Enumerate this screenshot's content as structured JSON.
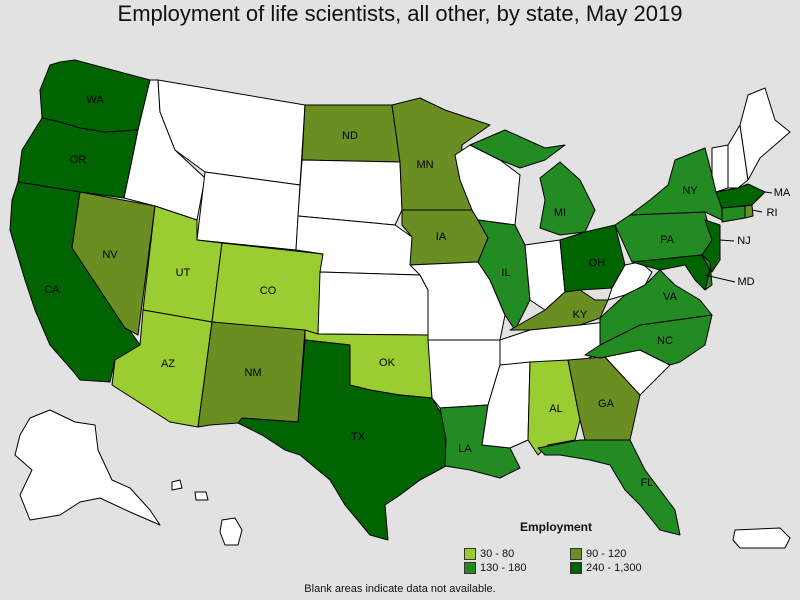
{
  "title": "Employment of life scientists, all other, by state, May 2019",
  "legend": {
    "title": "Employment",
    "items": [
      {
        "label": "30 - 80",
        "color": "#9acd32"
      },
      {
        "label": "90 - 120",
        "color": "#6b8e23"
      },
      {
        "label": "130 - 180",
        "color": "#228b22"
      },
      {
        "label": "240 - 1,300",
        "color": "#006400"
      }
    ]
  },
  "colors": {
    "nodata": "#ffffff",
    "background": "#e2e2e2"
  },
  "footnote": "Blank areas indicate data not available.",
  "states": {
    "WA": {
      "label": "WA",
      "bin": 3
    },
    "OR": {
      "label": "OR",
      "bin": 3
    },
    "CA": {
      "label": "CA",
      "bin": 3
    },
    "NV": {
      "label": "NV",
      "bin": 1
    },
    "UT": {
      "label": "UT",
      "bin": 0
    },
    "CO": {
      "label": "CO",
      "bin": 0
    },
    "AZ": {
      "label": "AZ",
      "bin": 0
    },
    "NM": {
      "label": "NM",
      "bin": 1
    },
    "TX": {
      "label": "TX",
      "bin": 3
    },
    "OK": {
      "label": "OK",
      "bin": 0
    },
    "ND": {
      "label": "ND",
      "bin": 1
    },
    "MN": {
      "label": "MN",
      "bin": 1
    },
    "IA": {
      "label": "IA",
      "bin": 1
    },
    "IL": {
      "label": "IL",
      "bin": 2
    },
    "MI": {
      "label": "MI",
      "bin": 2
    },
    "OH": {
      "label": "OH",
      "bin": 3
    },
    "KY": {
      "label": "KY",
      "bin": 1
    },
    "LA": {
      "label": "LA",
      "bin": 2
    },
    "AL": {
      "label": "AL",
      "bin": 0
    },
    "GA": {
      "label": "GA",
      "bin": 1
    },
    "FL": {
      "label": "FL",
      "bin": 2
    },
    "NC": {
      "label": "NC",
      "bin": 2
    },
    "VA": {
      "label": "VA",
      "bin": 2
    },
    "PA": {
      "label": "PA",
      "bin": 2
    },
    "NY": {
      "label": "NY",
      "bin": 2
    },
    "NJ": {
      "label": "NJ",
      "bin": 3
    },
    "MD": {
      "label": "MD",
      "bin": 3
    },
    "MA": {
      "label": "MA",
      "bin": 3
    },
    "RI": {
      "label": "RI",
      "bin": 1
    },
    "DE": {
      "bin": 2
    },
    "CT": {
      "bin": 2
    },
    "ID": {
      "bin": null
    },
    "MT": {
      "bin": null
    },
    "WY": {
      "bin": null
    },
    "SD": {
      "bin": null
    },
    "NE": {
      "bin": null
    },
    "KS": {
      "bin": null
    },
    "MO": {
      "bin": null
    },
    "AR": {
      "bin": null
    },
    "MS": {
      "bin": null
    },
    "TN": {
      "bin": null
    },
    "WI": {
      "bin": null
    },
    "IN": {
      "bin": null
    },
    "WV": {
      "bin": null
    },
    "SC": {
      "bin": null
    },
    "ME": {
      "bin": null
    },
    "NH": {
      "bin": null
    },
    "VT": {
      "bin": null
    },
    "AK": {
      "bin": null
    },
    "HI": {
      "bin": null
    },
    "PR": {
      "bin": null
    }
  }
}
